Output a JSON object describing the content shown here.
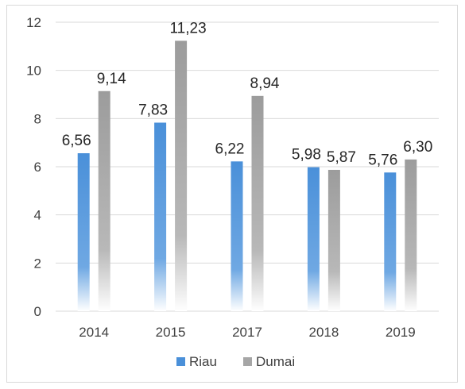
{
  "chart_data": {
    "type": "bar",
    "title": "",
    "xlabel": "",
    "ylabel": "",
    "categories": [
      "2014",
      "2015",
      "2017",
      "2018",
      "2019"
    ],
    "series": [
      {
        "name": "Riau",
        "values": [
          6.56,
          7.83,
          6.22,
          5.98,
          5.76
        ],
        "labels": [
          "6,56",
          "7,83",
          "6,22",
          "5,98",
          "5,76"
        ],
        "color": "#4a90d9"
      },
      {
        "name": "Dumai",
        "values": [
          9.14,
          11.23,
          8.94,
          5.87,
          6.3
        ],
        "labels": [
          "9,14",
          "11,23",
          "8,94",
          "5,87",
          "6,30"
        ],
        "color": "#a6a6a6"
      }
    ],
    "ylim": [
      0,
      12
    ],
    "yticks": [
      "0",
      "2",
      "4",
      "6",
      "8",
      "10",
      "12"
    ],
    "grid": true,
    "legend": "bottom"
  }
}
